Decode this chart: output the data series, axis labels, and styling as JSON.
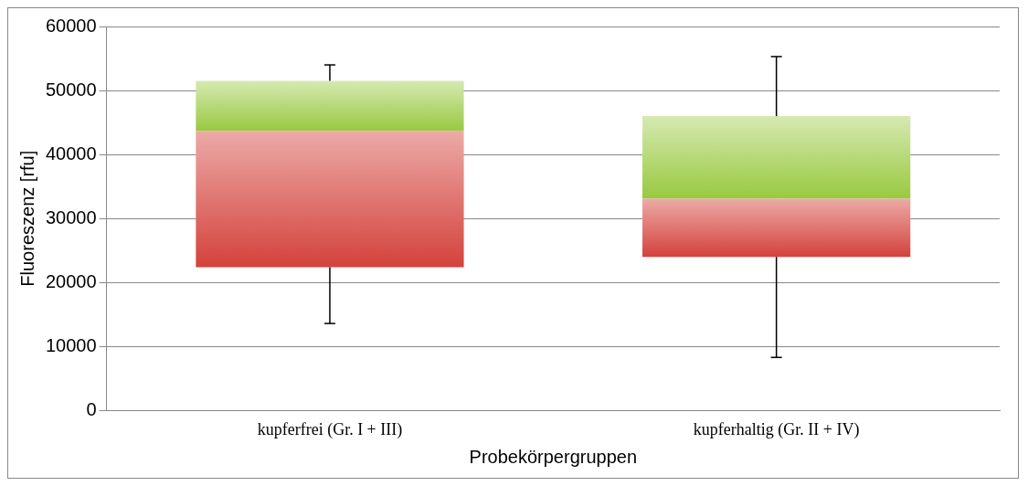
{
  "chart_data": {
    "type": "box",
    "xlabel": "Probekörpergruppen",
    "ylabel": "Fluoreszenz [rfu]",
    "categories": [
      "kupferfrei (Gr. I + III)",
      "kupferhaltig (Gr. II + IV)"
    ],
    "boxes": [
      {
        "low": 13600,
        "q1": 22400,
        "median": 43700,
        "q3": 51500,
        "high": 54000
      },
      {
        "low": 8300,
        "q1": 24000,
        "median": 33100,
        "q3": 46000,
        "high": 55300
      }
    ],
    "colors": [
      "#d4423c",
      "#98c93f"
    ],
    "ylim": [
      0,
      60000
    ],
    "yticks": [
      0,
      10000,
      20000,
      30000,
      40000,
      50000,
      60000
    ],
    "grid": "y"
  }
}
